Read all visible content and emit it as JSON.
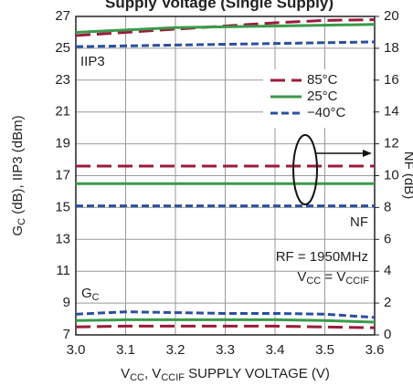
{
  "chart_data": {
    "type": "line",
    "title": "Supply Voltage (Single Supply)",
    "xlabel": [
      {
        "text": "V"
      },
      {
        "text": "CC",
        "sub": true
      },
      {
        "text": ", V"
      },
      {
        "text": "CCIF",
        "sub": true
      },
      {
        "text": " SUPPLY VOLTAGE (V)"
      }
    ],
    "ylabel": [
      {
        "text": "G"
      },
      {
        "text": "C",
        "sub": true
      },
      {
        "text": " (dB), IIP3 (dBm)"
      }
    ],
    "y2label": "NF (dB)",
    "x": [
      3.0,
      3.1,
      3.2,
      3.3,
      3.4,
      3.5,
      3.6
    ],
    "xlim": [
      3.0,
      3.6
    ],
    "xticks": [
      {
        "value": 3,
        "label": "3.0"
      },
      3.1,
      3.2,
      3.3,
      3.4,
      3.5,
      3.6
    ],
    "ylim": [
      7,
      27
    ],
    "yticks": [
      7,
      9,
      11,
      13,
      15,
      17,
      19,
      21,
      23,
      25,
      27
    ],
    "y2lim": [
      0,
      20
    ],
    "y2ticks": [
      0,
      2,
      4,
      6,
      8,
      10,
      12,
      14,
      16,
      18,
      20
    ],
    "grid": true,
    "legend": "upper right",
    "series": [
      {
        "name": "85°C",
        "color": "#9b1b3a",
        "dash": "long",
        "curves": [
          {
            "values": [
              25.8,
              26.0,
              26.2,
              26.4,
              26.6,
              26.75,
              26.8
            ]
          },
          {
            "values": [
              10.6,
              10.6,
              10.6,
              10.6,
              10.6,
              10.6,
              10.6
            ],
            "axis": "y2"
          },
          {
            "values": [
              7.5,
              7.55,
              7.55,
              7.55,
              7.55,
              7.5,
              7.45
            ]
          }
        ]
      },
      {
        "name": "25°C",
        "color": "#3a9a4a",
        "dash": "solid",
        "curves": [
          {
            "values": [
              26.0,
              26.15,
              26.3,
              26.35,
              26.4,
              26.45,
              26.5
            ]
          },
          {
            "values": [
              9.5,
              9.5,
              9.5,
              9.5,
              9.5,
              9.5,
              9.5
            ],
            "axis": "y2"
          },
          {
            "values": [
              7.9,
              7.95,
              7.95,
              7.95,
              7.95,
              7.9,
              7.8
            ]
          }
        ]
      },
      {
        "name": "−40°C",
        "color": "#2b4fa0",
        "dash": "short",
        "curves": [
          {
            "values": [
              25.1,
              25.15,
              25.2,
              25.25,
              25.3,
              25.35,
              25.4
            ]
          },
          {
            "values": [
              8.1,
              8.1,
              8.1,
              8.1,
              8.1,
              8.1,
              8.1
            ],
            "axis": "y2"
          },
          {
            "values": [
              8.3,
              8.45,
              8.4,
              8.35,
              8.35,
              8.3,
              8.1
            ]
          }
        ]
      }
    ],
    "annotations": {
      "iip3": [
        {
          "text": "IIP3"
        }
      ],
      "nf": [
        {
          "text": "NF"
        }
      ],
      "gc": [
        {
          "text": "G"
        },
        {
          "text": "C",
          "sub": true
        }
      ],
      "rf": [
        {
          "text": "RF = 1950MHz"
        }
      ],
      "vcc": [
        {
          "text": "V"
        },
        {
          "text": "CC",
          "sub": true
        },
        {
          "text": " = V"
        },
        {
          "text": "CCIF",
          "sub": true
        }
      ]
    }
  }
}
